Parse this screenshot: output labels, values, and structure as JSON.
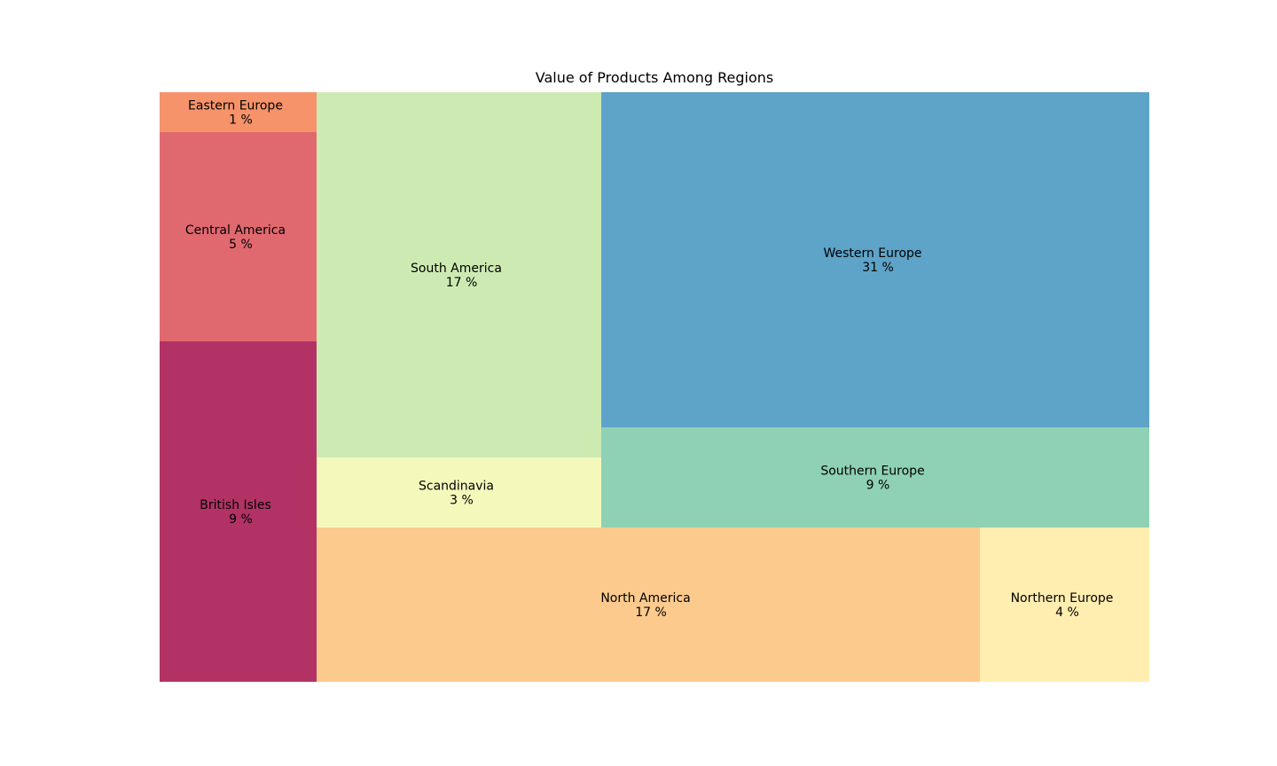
{
  "chart_data": {
    "type": "treemap",
    "title": "Value of Products Among Regions",
    "items": [
      {
        "label": "British Isles",
        "value_text": "9 %",
        "value": 9,
        "color": "#b23265"
      },
      {
        "label": "Central America",
        "value_text": "5 %",
        "value": 5,
        "color": "#e0696f"
      },
      {
        "label": "Eastern Europe",
        "value_text": "1 %",
        "value": 1,
        "color": "#f6936b"
      },
      {
        "label": "North America",
        "value_text": "17 %",
        "value": 17,
        "color": "#fcca8c"
      },
      {
        "label": "Scandinavia",
        "value_text": "3 %",
        "value": 3,
        "color": "#f4f9bb"
      },
      {
        "label": "South America",
        "value_text": "17 %",
        "value": 17,
        "color": "#cdeab3"
      },
      {
        "label": "Northern Europe",
        "value_text": "4 %",
        "value": 4,
        "color": "#ffeeb0"
      },
      {
        "label": "Southern Europe",
        "value_text": "9 %",
        "value": 9,
        "color": "#8fd1b4"
      },
      {
        "label": "Western Europe",
        "value_text": "31 %",
        "value": 31,
        "color": "#5ea3c8"
      }
    ]
  }
}
